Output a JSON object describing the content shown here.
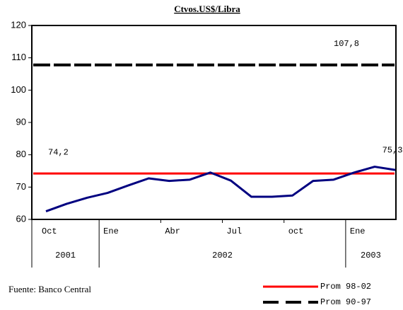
{
  "chart_data": {
    "type": "line",
    "title": "Ctvos.US$/Libra",
    "categories": [
      "Oct",
      null,
      null,
      "Ene",
      null,
      null,
      "Abr",
      null,
      null,
      "Jul",
      null,
      null,
      "oct",
      null,
      null,
      "Ene",
      null,
      null
    ],
    "year_labels": [
      "2001",
      "2002",
      "2003"
    ],
    "series": [
      {
        "color": "#000080",
        "values": [
          62.5,
          64.8,
          66.7,
          68.2,
          70.5,
          72.7,
          71.9,
          72.3,
          74.5,
          72.0,
          67.0,
          67.0,
          67.4,
          71.9,
          72.3,
          74.5,
          76.3,
          75.3
        ],
        "value_labels": [
          null,
          null,
          null,
          null,
          null,
          null,
          null,
          null,
          null,
          null,
          null,
          null,
          null,
          null,
          null,
          null,
          null,
          "75,3"
        ]
      }
    ],
    "reference_lines": [
      {
        "name": "Prom 98-02",
        "color": "#ff0000",
        "value": 74.2,
        "value_label": "74,2",
        "dashed": false
      },
      {
        "name": "Prom 90-97",
        "color": "#000000",
        "value": 107.8,
        "value_label": "107,8",
        "dashed": true
      }
    ],
    "ylim": [
      60,
      120
    ],
    "yticks": [
      60,
      70,
      80,
      90,
      100,
      110,
      120
    ],
    "source": "Fuente: Banco Central"
  }
}
